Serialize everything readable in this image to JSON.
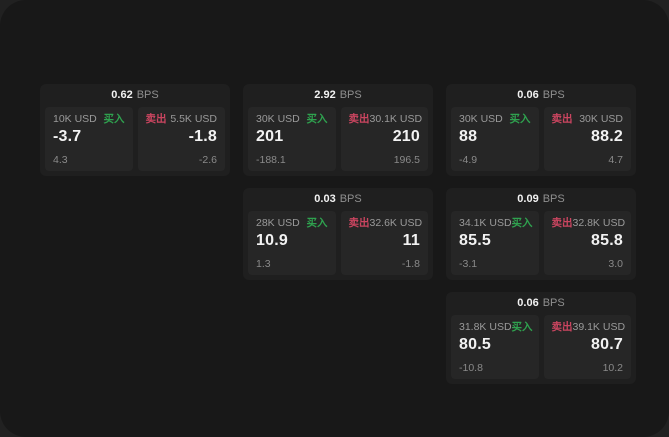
{
  "theme": {
    "outer_bg": "#212121",
    "window_bg": "#181818",
    "card_bg": "#1f1f1f",
    "panel_bg": "#262626",
    "text_primary": "#f2f2f2",
    "text_muted": "#8f8f8f",
    "buy_color": "#2fa24f",
    "sell_color": "#cb4560"
  },
  "labels": {
    "bps_suffix": "BPS",
    "buy": "买入",
    "sell": "卖出"
  },
  "cards": [
    {
      "bps": "0.62",
      "buy": {
        "size": "10K USD",
        "price": "-3.7",
        "delta": "4.3"
      },
      "sell": {
        "size": "5.5K USD",
        "price": "-1.8",
        "delta": "-2.6"
      }
    },
    {
      "bps": "2.92",
      "buy": {
        "size": "30K USD",
        "price": "201",
        "delta": "-188.1"
      },
      "sell": {
        "size": "30.1K USD",
        "price": "210",
        "delta": "196.5"
      }
    },
    {
      "bps": "0.06",
      "buy": {
        "size": "30K USD",
        "price": "88",
        "delta": "-4.9"
      },
      "sell": {
        "size": "30K USD",
        "price": "88.2",
        "delta": "4.7"
      }
    },
    {
      "bps": "0.03",
      "buy": {
        "size": "28K USD",
        "price": "10.9",
        "delta": "1.3"
      },
      "sell": {
        "size": "32.6K USD",
        "price": "11",
        "delta": "-1.8"
      }
    },
    {
      "bps": "0.09",
      "buy": {
        "size": "34.1K USD",
        "price": "85.5",
        "delta": "-3.1"
      },
      "sell": {
        "size": "32.8K USD",
        "price": "85.8",
        "delta": "3.0"
      }
    },
    {
      "bps": "0.06",
      "buy": {
        "size": "31.8K USD",
        "price": "80.5",
        "delta": "-10.8"
      },
      "sell": {
        "size": "39.1K USD",
        "price": "80.7",
        "delta": "10.2"
      }
    }
  ]
}
